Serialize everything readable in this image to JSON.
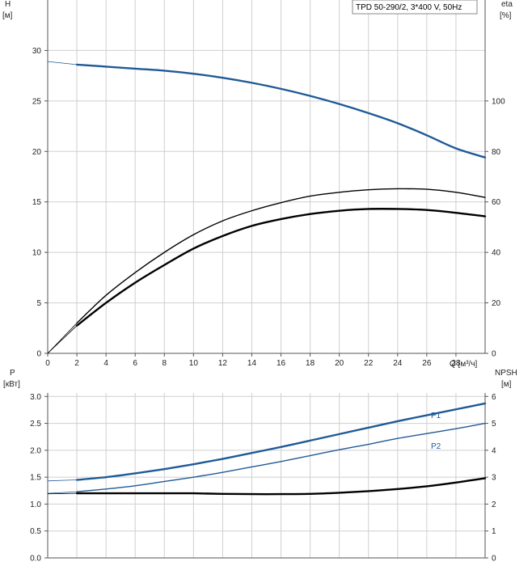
{
  "chart_data": [
    {
      "type": "line",
      "title": "TPD 50-290/2, 3*400 V, 50Hz",
      "xlabel": "Q [м³/ч]",
      "ylabel_left": "H",
      "ylabel_left_unit": "[м]",
      "ylabel_right": "eta",
      "ylabel_right_unit": "[%]",
      "xlim": [
        0,
        30
      ],
      "ylim_left": [
        0,
        35
      ],
      "ylim_right": [
        0,
        140
      ],
      "x_ticks": [
        "0",
        "2",
        "4",
        "6",
        "8",
        "10",
        "12",
        "14",
        "16",
        "18",
        "20",
        "22",
        "24",
        "26",
        "28"
      ],
      "y_left_ticks": [
        "0",
        "5",
        "10",
        "15",
        "20",
        "25",
        "30"
      ],
      "y_right_ticks": [
        "0",
        "20",
        "40",
        "60",
        "80",
        "100"
      ],
      "grid": true,
      "series": [
        {
          "axis": "left",
          "color": "#1f5a96",
          "x": [
            0,
            2,
            4,
            6,
            8,
            10,
            12,
            14,
            16,
            18,
            20,
            22,
            24,
            26,
            28,
            30
          ],
          "values": [
            28.9,
            28.6,
            28.4,
            28.2,
            28.0,
            27.7,
            27.3,
            26.8,
            26.2,
            25.5,
            24.7,
            23.8,
            22.8,
            21.6,
            20.3,
            19.4
          ]
        },
        {
          "axis": "right",
          "color": "#000000",
          "x": [
            0,
            2,
            4,
            6,
            8,
            10,
            12,
            14,
            16,
            18,
            20,
            22,
            24,
            26,
            28,
            30
          ],
          "values": [
            0,
            12,
            23,
            32,
            40,
            47,
            52.5,
            56.5,
            59.7,
            62.3,
            63.8,
            64.8,
            65.2,
            65.0,
            63.8,
            61.8
          ]
        },
        {
          "axis": "right",
          "color": "#000000",
          "x": [
            0,
            2,
            4,
            6,
            8,
            10,
            12,
            14,
            16,
            18,
            20,
            22,
            24,
            26,
            28,
            30
          ],
          "values": [
            0,
            11,
            20,
            28,
            35,
            41.5,
            46.5,
            50.5,
            53.2,
            55.2,
            56.5,
            57.2,
            57.2,
            56.8,
            55.7,
            54.3
          ]
        }
      ]
    },
    {
      "type": "line",
      "xlabel": "",
      "ylabel_left": "P",
      "ylabel_left_unit": "[кВт]",
      "ylabel_right": "NPSH",
      "ylabel_right_unit": "[м]",
      "xlim": [
        0,
        30
      ],
      "ylim_left": [
        0,
        3.5
      ],
      "ylim_right": [
        0,
        7
      ],
      "y_left_ticks": [
        "0.0",
        "0.5",
        "1.0",
        "1.5",
        "2.0",
        "2.5",
        "3.0"
      ],
      "y_right_ticks": [
        "0",
        "1",
        "2",
        "3",
        "4",
        "5",
        "6"
      ],
      "grid": true,
      "series": [
        {
          "name": "P1",
          "axis": "left",
          "color": "#1f5a96",
          "x": [
            0,
            2,
            4,
            6,
            8,
            10,
            12,
            14,
            16,
            18,
            20,
            22,
            24,
            26,
            28,
            30
          ],
          "values": [
            1.43,
            1.45,
            1.5,
            1.57,
            1.65,
            1.74,
            1.84,
            1.95,
            2.06,
            2.18,
            2.3,
            2.42,
            2.54,
            2.65,
            2.76,
            2.87
          ]
        },
        {
          "name": "P2",
          "axis": "left",
          "color": "#1f5a96",
          "x": [
            0,
            2,
            4,
            6,
            8,
            10,
            12,
            14,
            16,
            18,
            20,
            22,
            24,
            26,
            28,
            30
          ],
          "values": [
            1.2,
            1.23,
            1.28,
            1.34,
            1.42,
            1.5,
            1.59,
            1.69,
            1.79,
            1.9,
            2.01,
            2.11,
            2.22,
            2.31,
            2.4,
            2.5
          ]
        },
        {
          "axis": "right",
          "color": "#000000",
          "x": [
            0,
            2,
            4,
            6,
            8,
            10,
            12,
            14,
            16,
            18,
            20,
            22,
            24,
            26,
            28,
            30
          ],
          "values": [
            2.38,
            2.4,
            2.4,
            2.4,
            2.4,
            2.4,
            2.38,
            2.37,
            2.37,
            2.38,
            2.42,
            2.48,
            2.56,
            2.66,
            2.8,
            2.96
          ]
        }
      ]
    }
  ]
}
